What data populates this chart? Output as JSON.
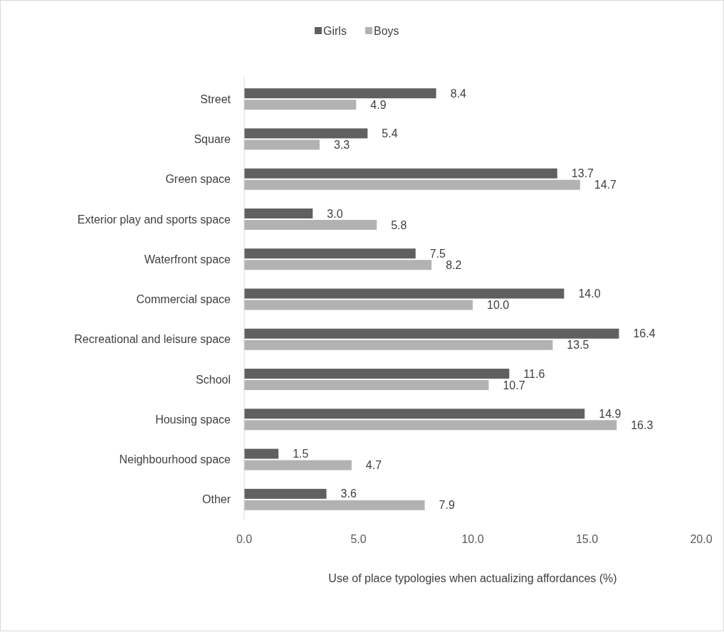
{
  "chart_data": {
    "type": "bar",
    "orientation": "horizontal",
    "xlabel": "Use of place typologies when actualizing affordances (%)",
    "categories": [
      "Street",
      "Square",
      "Green space",
      "Exterior play and sports space",
      "Waterfront space",
      "Commercial space",
      "Recreational and leisure space",
      "School",
      "Housing space",
      "Neighbourhood space",
      "Other"
    ],
    "series": [
      {
        "name": "Girls",
        "color": "#606060",
        "values": [
          8.4,
          5.4,
          13.7,
          3.0,
          7.5,
          14.0,
          16.4,
          11.6,
          14.9,
          1.5,
          3.6
        ],
        "value_labels": [
          "8.4",
          "5.4",
          "13.7",
          "3.0",
          "7.5",
          "14.0",
          "16.4",
          "11.6",
          "14.9",
          "1.5",
          "3.6"
        ]
      },
      {
        "name": "Boys",
        "color": "#b2b2b2",
        "values": [
          4.9,
          3.3,
          14.7,
          5.8,
          8.2,
          10.0,
          13.5,
          10.7,
          16.3,
          4.7,
          7.9
        ],
        "value_labels": [
          "4.9",
          "3.3",
          "14.7",
          "5.8",
          "8.2",
          "10.0",
          "13.5",
          "10.7",
          "16.3",
          "4.7",
          "7.9"
        ]
      }
    ],
    "xlim": [
      0,
      20
    ],
    "xticks": [
      {
        "value": 0,
        "label": "0.0"
      },
      {
        "value": 5,
        "label": "5.0"
      },
      {
        "value": 10,
        "label": "10.0"
      },
      {
        "value": 15,
        "label": "15.0"
      },
      {
        "value": 20,
        "label": "20.0"
      }
    ],
    "grid": false,
    "legend": "top"
  }
}
